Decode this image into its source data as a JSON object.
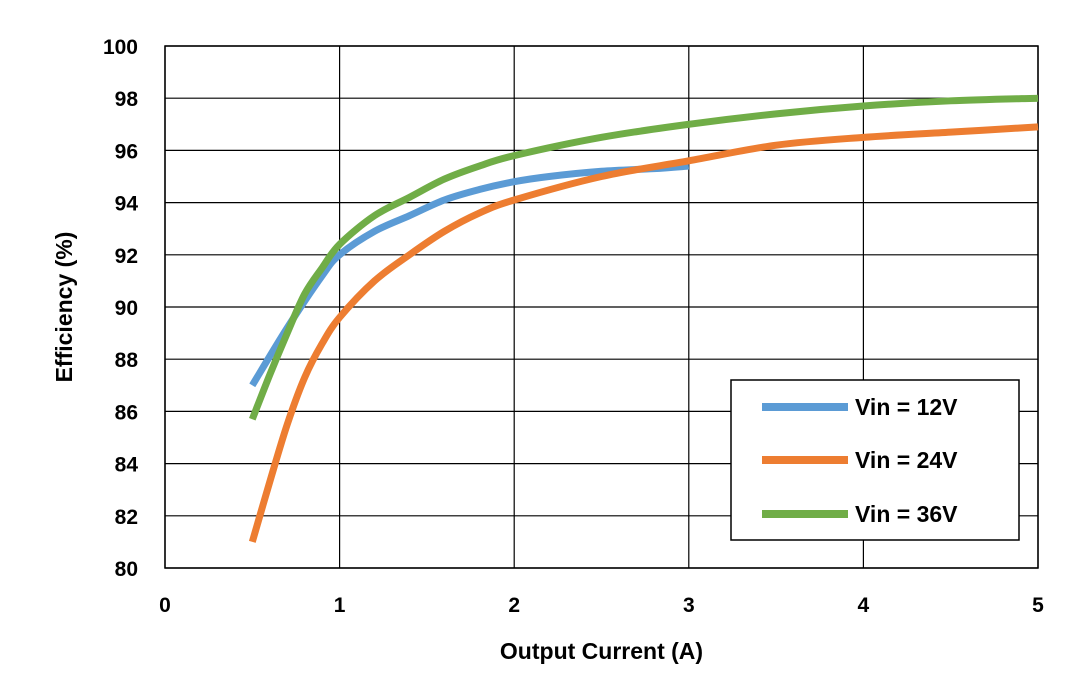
{
  "chart_data": {
    "type": "line",
    "title": "",
    "xlabel": "Output Current (A)",
    "ylabel": "Efficiency (%)",
    "xlim": [
      0,
      5
    ],
    "ylim": [
      80,
      100
    ],
    "x_ticks": [
      0,
      1,
      2,
      3,
      4,
      5
    ],
    "y_ticks": [
      80,
      82,
      84,
      86,
      88,
      90,
      92,
      94,
      96,
      98,
      100
    ],
    "grid": true,
    "legend_position": "bottom-right",
    "series": [
      {
        "name": "Vin = 12V",
        "color": "#5B9BD5",
        "x": [
          0.5,
          0.7,
          0.9,
          1.0,
          1.2,
          1.4,
          1.6,
          1.8,
          2.0,
          2.2,
          2.5,
          2.8,
          3.0
        ],
        "y": [
          87.0,
          89.2,
          91.2,
          92.0,
          92.9,
          93.5,
          94.1,
          94.5,
          94.8,
          95.0,
          95.2,
          95.3,
          95.4
        ]
      },
      {
        "name": "Vin = 24V",
        "color": "#ED7D31",
        "x": [
          0.5,
          0.6,
          0.7,
          0.8,
          0.9,
          1.0,
          1.2,
          1.4,
          1.6,
          1.8,
          2.0,
          2.5,
          3.0,
          3.5,
          4.0,
          4.5,
          5.0
        ],
        "y": [
          81.0,
          83.3,
          85.5,
          87.3,
          88.6,
          89.6,
          91.0,
          92.0,
          92.9,
          93.6,
          94.1,
          95.0,
          95.6,
          96.2,
          96.5,
          96.7,
          96.9
        ]
      },
      {
        "name": "Vin = 36V",
        "color": "#70AD47",
        "x": [
          0.5,
          0.6,
          0.7,
          0.8,
          0.9,
          1.0,
          1.2,
          1.4,
          1.6,
          1.8,
          2.0,
          2.5,
          3.0,
          3.5,
          4.0,
          4.5,
          5.0
        ],
        "y": [
          85.7,
          87.4,
          89.0,
          90.5,
          91.5,
          92.4,
          93.5,
          94.2,
          94.9,
          95.4,
          95.8,
          96.5,
          97.0,
          97.4,
          97.7,
          97.9,
          98.0
        ]
      }
    ]
  }
}
